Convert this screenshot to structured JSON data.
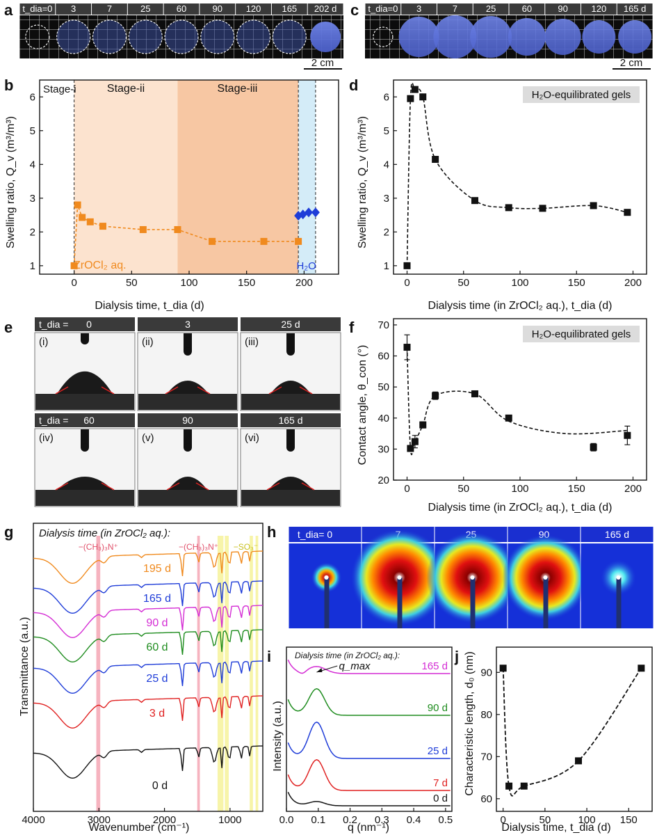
{
  "figure": {
    "panel_labels": [
      "a",
      "b",
      "c",
      "d",
      "e",
      "f",
      "g",
      "h",
      "i",
      "j"
    ],
    "colors": {
      "orange": "#F08A1E",
      "blue": "#1E3CD8",
      "black": "#111111",
      "red": "#E02020",
      "green": "#1E8C1E",
      "magenta": "#D42CD4",
      "header": "#3A3A3A",
      "stage_light": "#FCE3CF",
      "stage_dark": "#F7C7A3",
      "stage_water": "#D4ECF8",
      "pink_band": "#F4A6B4",
      "yellow_band": "#F6F29A"
    }
  },
  "panel_a": {
    "header_labels": [
      "t_dia=0",
      "3",
      "7",
      "25",
      "60",
      "90",
      "120",
      "165",
      "202 d"
    ],
    "scale_bar": "2 cm"
  },
  "panel_c": {
    "header_labels": [
      "t_dia=0",
      "3",
      "7",
      "25",
      "60",
      "90",
      "120",
      "165 d"
    ],
    "scale_bar": "2 cm"
  },
  "panel_e": {
    "row1_headers": [
      "t_dia =",
      "0",
      "3",
      "25 d"
    ],
    "row2_headers": [
      "t_dia =",
      "60",
      "90",
      "165 d"
    ],
    "image_labels": [
      "(i)",
      "(ii)",
      "(iii)",
      "(iv)",
      "(v)",
      "(vi)"
    ]
  },
  "panel_h": {
    "header_labels": [
      "t_dia= 0",
      "7",
      "25",
      "90",
      "165 d"
    ]
  },
  "chart_data": [
    {
      "id": "b",
      "type": "scatter",
      "xlabel": "Dialysis time, t_dia (d)",
      "ylabel": "Swelling ratio, Q_v (m³/m³)",
      "xlim": [
        -30,
        230
      ],
      "ylim": [
        0.75,
        6.5
      ],
      "xticks": [
        "0",
        "50",
        "100",
        "150",
        "200"
      ],
      "yticks": [
        "1",
        "2",
        "3",
        "4",
        "5",
        "6"
      ],
      "stages": [
        "Stage-i",
        "Stage-ii",
        "Stage-iii"
      ],
      "annotations": [
        "ZrOCl₂ aq.",
        "H₂O"
      ],
      "series": [
        {
          "name": "ZrOCl2 aq.",
          "x": [
            0,
            3,
            7,
            14,
            25,
            60,
            90,
            120,
            165,
            195
          ],
          "y": [
            1.0,
            2.8,
            2.43,
            2.3,
            2.17,
            2.07,
            2.07,
            1.72,
            1.72,
            1.72
          ]
        },
        {
          "name": "H2O",
          "x": [
            195,
            199,
            204,
            210
          ],
          "y": [
            2.48,
            2.52,
            2.58,
            2.58
          ]
        }
      ]
    },
    {
      "id": "d",
      "type": "scatter",
      "xlabel": "Dialysis time (in ZrOCl₂ aq.), t_dia (d)",
      "ylabel": "Swelling ratio, Q_v (m³/m³)",
      "xlim": [
        -12,
        212
      ],
      "ylim": [
        0.75,
        6.5
      ],
      "xticks": [
        "0",
        "50",
        "100",
        "150",
        "200"
      ],
      "yticks": [
        "1",
        "2",
        "3",
        "4",
        "5",
        "6"
      ],
      "legend": "H₂O-equilibrated gels",
      "x": [
        0,
        3,
        7,
        14,
        25,
        60,
        90,
        120,
        165,
        195
      ],
      "y": [
        1.0,
        5.95,
        6.22,
        6.0,
        4.15,
        2.93,
        2.72,
        2.7,
        2.78,
        2.58
      ]
    },
    {
      "id": "f",
      "type": "scatter",
      "xlabel": "Dialysis time (in ZrOCl₂ aq.), t_dia (d)",
      "ylabel": "Contact angle, θ_con (°)",
      "xlim": [
        -12,
        212
      ],
      "ylim": [
        20,
        72
      ],
      "xticks": [
        "0",
        "50",
        "100",
        "150",
        "200"
      ],
      "yticks": [
        "20",
        "30",
        "40",
        "50",
        "60",
        "70"
      ],
      "legend": "H₂O-equilibrated gels",
      "x": [
        0,
        3,
        7,
        14,
        25,
        60,
        90,
        165,
        195
      ],
      "y": [
        62.8,
        30.2,
        32.4,
        37.8,
        47.2,
        47.8,
        40.0,
        30.6,
        34.4
      ],
      "err": [
        4,
        0.5,
        2,
        1,
        1.2,
        0.5,
        0.5,
        1.2,
        3
      ]
    },
    {
      "id": "g",
      "type": "line",
      "xlabel": "Wavenumber (cm⁻¹)",
      "ylabel": "Transmittance (a.u.)",
      "xlim": [
        4000,
        500
      ],
      "xticks": [
        "4000",
        "3000",
        "2000",
        "1000"
      ],
      "title": "Dialysis time (in ZrOCl₂ aq.):",
      "band_labels": [
        "−(CH₃)₃N⁺",
        "−(CH₃)₃N⁺",
        "−SO₃⁻"
      ],
      "series": [
        "195 d",
        "165 d",
        "90 d",
        "60 d",
        "25 d",
        "3 d",
        "0 d"
      ]
    },
    {
      "id": "i",
      "type": "line",
      "xlabel": "q (nm⁻¹)",
      "ylabel": "Intensity (a.u.)",
      "xlim": [
        0,
        0.52
      ],
      "xticks": [
        "0.0",
        "0.1",
        "0.2",
        "0.3",
        "0.4",
        "0.5"
      ],
      "title": "Dialysis time (in ZrOCl₂ aq.):",
      "annotation": "q_max",
      "series": [
        "165 d",
        "90 d",
        "25 d",
        "7 d",
        "0 d"
      ]
    },
    {
      "id": "j",
      "type": "scatter",
      "xlabel": "Dialysis time, t_dia (d)",
      "ylabel": "Characteristic length, d₀ (nm)",
      "xlim": [
        -8,
        178
      ],
      "ylim": [
        57,
        96
      ],
      "xticks": [
        "0",
        "50",
        "100",
        "150"
      ],
      "yticks": [
        "60",
        "70",
        "80",
        "90"
      ],
      "x": [
        0,
        7,
        25,
        90,
        165
      ],
      "y": [
        91,
        63,
        63,
        69,
        91
      ]
    }
  ]
}
